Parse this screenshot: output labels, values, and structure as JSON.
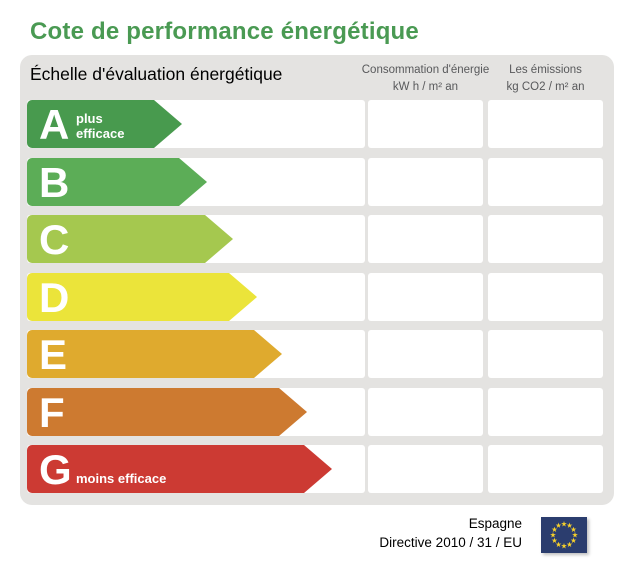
{
  "title": "Cote de performance énergétique",
  "theme": {
    "title_color": "#4a9a53",
    "panel_bg": "#e4e3e1",
    "cell_bg": "#ffffff",
    "column_header_color": "#58595b"
  },
  "panel": {
    "scale_title": "Échelle d'évaluation énergétique",
    "columns": [
      {
        "id": "consumption",
        "line1": "Consommation d'énergie",
        "line2": "kW h / m² an",
        "value": ""
      },
      {
        "id": "emissions",
        "line1": "Les émissions",
        "line2": "kg CO2 / m² an",
        "value": ""
      }
    ],
    "rows": [
      {
        "grade": "A",
        "note": "plus efficace",
        "color": "#489a4e",
        "arrow_width": 155,
        "consumption": "",
        "emissions": ""
      },
      {
        "grade": "B",
        "note": "",
        "color": "#5cad57",
        "arrow_width": 180,
        "consumption": "",
        "emissions": ""
      },
      {
        "grade": "C",
        "note": "",
        "color": "#a5c84f",
        "arrow_width": 206,
        "consumption": "",
        "emissions": ""
      },
      {
        "grade": "D",
        "note": "",
        "color": "#ebe43a",
        "arrow_width": 230,
        "consumption": "",
        "emissions": ""
      },
      {
        "grade": "E",
        "note": "",
        "color": "#dfaa2e",
        "arrow_width": 255,
        "consumption": "",
        "emissions": ""
      },
      {
        "grade": "F",
        "note": "",
        "color": "#cd7a30",
        "arrow_width": 280,
        "consumption": "",
        "emissions": ""
      },
      {
        "grade": "G",
        "note": "moins efficace",
        "color": "#cc3a33",
        "arrow_width": 305,
        "consumption": "",
        "emissions": ""
      }
    ]
  },
  "footer": {
    "country": "Espagne",
    "directive": "Directive 2010 / 31 / EU",
    "flag": {
      "field_color": "#2b3d6e",
      "star_color": "#f8d12a",
      "stars": 12
    }
  }
}
